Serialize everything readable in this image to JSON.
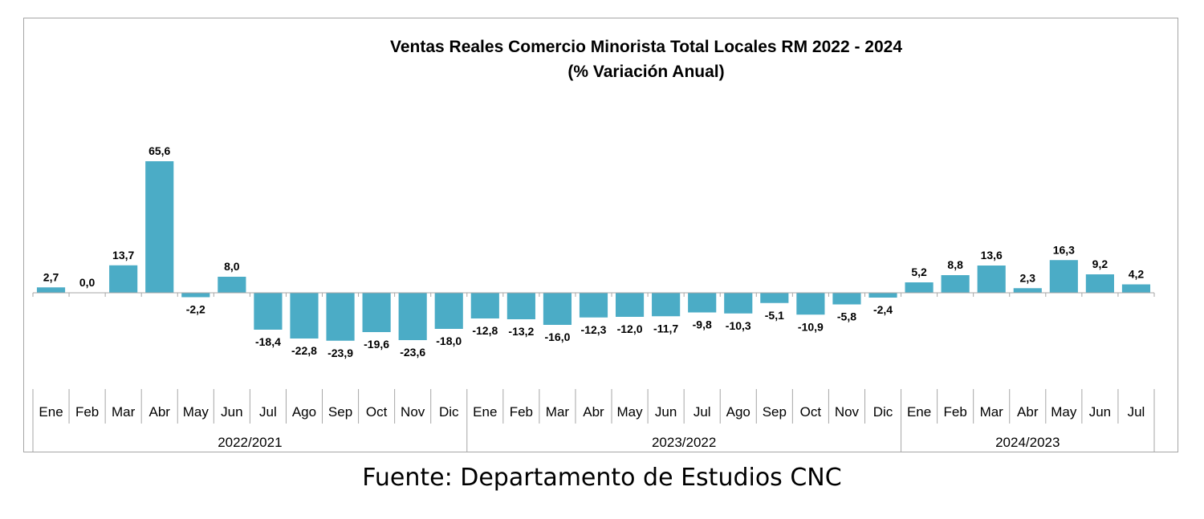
{
  "chart_data": {
    "type": "bar",
    "title": "Ventas Reales Comercio Minorista  Total Locales RM 2022 - 2024",
    "subtitle": "(% Variación Anual)",
    "categories": [
      "Ene",
      "Feb",
      "Mar",
      "Abr",
      "May",
      "Jun",
      "Jul",
      "Ago",
      "Sep",
      "Oct",
      "Nov",
      "Dic",
      "Ene",
      "Feb",
      "Mar",
      "Abr",
      "May",
      "Jun",
      "Jul",
      "Ago",
      "Sep",
      "Oct",
      "Nov",
      "Dic",
      "Ene",
      "Feb",
      "Mar",
      "Abr",
      "May",
      "Jun",
      "Jul"
    ],
    "groups": [
      {
        "label": "2022/2021",
        "count": 12
      },
      {
        "label": "2023/2022",
        "count": 12
      },
      {
        "label": "2024/2023",
        "count": 7
      }
    ],
    "values": [
      2.7,
      0.0,
      13.7,
      65.6,
      -2.2,
      8.0,
      -18.4,
      -22.8,
      -23.9,
      -19.6,
      -23.6,
      -18.0,
      -12.8,
      -13.2,
      -16.0,
      -12.3,
      -12.0,
      -11.7,
      -9.8,
      -10.3,
      -5.1,
      -10.9,
      -5.8,
      -2.4,
      5.2,
      8.8,
      13.6,
      2.3,
      16.3,
      9.2,
      4.2
    ],
    "labels": [
      "2,7",
      "0,0",
      "13,7",
      "65,6",
      "-2,2",
      "8,0",
      "-18,4",
      "-22,8",
      "-23,9",
      "-19,6",
      "-23,6",
      "-18,0",
      "-12,8",
      "-13,2",
      "-16,0",
      "-12,3",
      "-12,0",
      "-11,7",
      "-9,8",
      "-10,3",
      "-5,1",
      "-10,9",
      "-5,8",
      "-2,4",
      "5,2",
      "8,8",
      "13,6",
      "2,3",
      "16,3",
      "9,2",
      "4,2"
    ],
    "bar_color": "#4bacc6",
    "ylim": [
      -30,
      70
    ],
    "grid": false,
    "legend": "none"
  },
  "source": "Fuente: Departamento de Estudios CNC"
}
